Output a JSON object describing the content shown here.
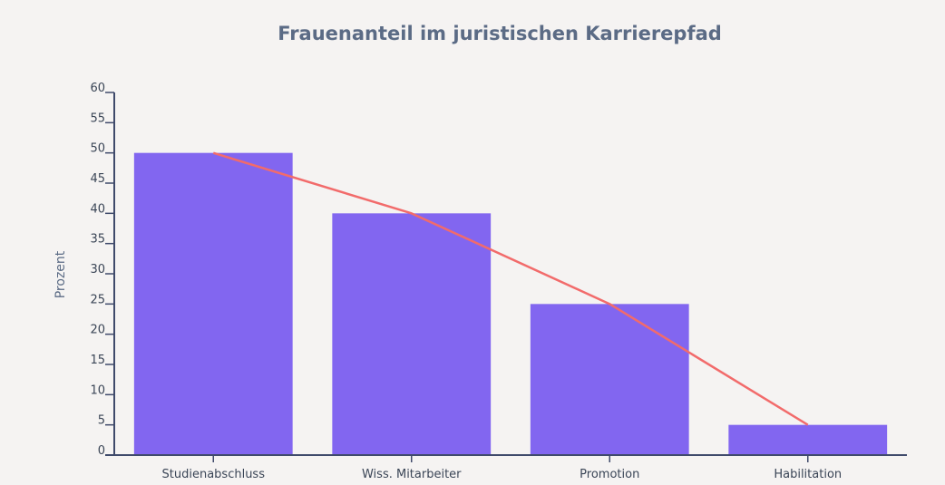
{
  "chart_data": {
    "type": "bar",
    "title": "Frauenanteil im juristischen Karrierepfad",
    "xlabel": "",
    "ylabel": "Prozent",
    "categories": [
      "Studienabschluss",
      "Wiss. Mitarbeiter",
      "Promotion",
      "Habilitation"
    ],
    "values": [
      50,
      40,
      25,
      5
    ],
    "line_values": [
      50,
      40,
      25,
      5
    ],
    "ylim": [
      0,
      60
    ],
    "yticks": [
      0,
      5,
      10,
      15,
      20,
      25,
      30,
      35,
      40,
      45,
      50,
      55,
      60
    ],
    "grid": false,
    "legend": "none",
    "colors": {
      "bar": "#8266f0",
      "line": "#f26b6b",
      "axis": "#3f4a6b",
      "title": "#5b6b85",
      "background": "#f5f3f2"
    }
  }
}
